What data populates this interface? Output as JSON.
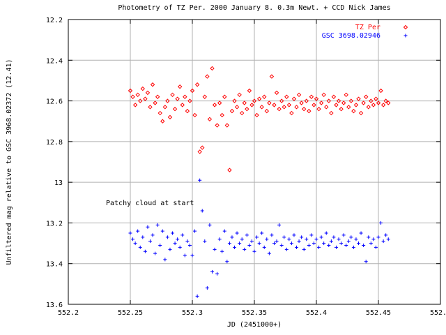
{
  "chart_data": {
    "type": "scatter",
    "title": "Photometry of TZ Per. 2000 January 8. 0.3m Newt. + CCD   Nick James",
    "xlabel": "JD (2451000+)",
    "ylabel": "Unfiltered mag relative to GSC 3968.02372 (12.41)",
    "xlim": [
      552.2,
      552.5
    ],
    "ylim": [
      12.2,
      13.6
    ],
    "y_inverted": true,
    "grid": true,
    "legend_position": "top-right",
    "x_ticks": [
      "552.2",
      "552.25",
      "552.3",
      "552.35",
      "552.4",
      "552.45",
      "552.5"
    ],
    "y_ticks": [
      "12.2",
      "12.4",
      "12.6",
      "12.8",
      "13",
      "13.2",
      "13.4",
      "13.6"
    ],
    "annotation": "Patchy cloud at start",
    "series": [
      {
        "name": "TZ Per",
        "color": "#ff0000",
        "marker": "diamond",
        "points": [
          [
            552.25,
            12.55
          ],
          [
            552.252,
            12.58
          ],
          [
            552.254,
            12.62
          ],
          [
            552.256,
            12.57
          ],
          [
            552.258,
            12.6
          ],
          [
            552.26,
            12.54
          ],
          [
            552.262,
            12.59
          ],
          [
            552.264,
            12.56
          ],
          [
            552.266,
            12.63
          ],
          [
            552.268,
            12.52
          ],
          [
            552.27,
            12.61
          ],
          [
            552.272,
            12.58
          ],
          [
            552.274,
            12.66
          ],
          [
            552.276,
            12.7
          ],
          [
            552.278,
            12.63
          ],
          [
            552.28,
            12.6
          ],
          [
            552.282,
            12.68
          ],
          [
            552.284,
            12.57
          ],
          [
            552.286,
            12.64
          ],
          [
            552.288,
            12.59
          ],
          [
            552.29,
            12.53
          ],
          [
            552.292,
            12.62
          ],
          [
            552.294,
            12.58
          ],
          [
            552.296,
            12.65
          ],
          [
            552.298,
            12.6
          ],
          [
            552.3,
            12.55
          ],
          [
            552.302,
            12.67
          ],
          [
            552.304,
            12.52
          ],
          [
            552.306,
            12.85
          ],
          [
            552.308,
            12.83
          ],
          [
            552.31,
            12.58
          ],
          [
            552.312,
            12.48
          ],
          [
            552.314,
            12.69
          ],
          [
            552.316,
            12.44
          ],
          [
            552.318,
            12.62
          ],
          [
            552.32,
            12.72
          ],
          [
            552.322,
            12.61
          ],
          [
            552.324,
            12.67
          ],
          [
            552.326,
            12.58
          ],
          [
            552.328,
            12.72
          ],
          [
            552.33,
            12.94
          ],
          [
            552.332,
            12.65
          ],
          [
            552.334,
            12.6
          ],
          [
            552.336,
            12.63
          ],
          [
            552.338,
            12.57
          ],
          [
            552.34,
            12.66
          ],
          [
            552.342,
            12.61
          ],
          [
            552.344,
            12.64
          ],
          [
            552.346,
            12.55
          ],
          [
            552.348,
            12.62
          ],
          [
            552.35,
            12.6
          ],
          [
            552.352,
            12.67
          ],
          [
            552.354,
            12.59
          ],
          [
            552.356,
            12.63
          ],
          [
            552.358,
            12.58
          ],
          [
            552.36,
            12.65
          ],
          [
            552.362,
            12.61
          ],
          [
            552.364,
            12.48
          ],
          [
            552.366,
            12.62
          ],
          [
            552.368,
            12.56
          ],
          [
            552.37,
            12.64
          ],
          [
            552.372,
            12.6
          ],
          [
            552.374,
            12.63
          ],
          [
            552.376,
            12.58
          ],
          [
            552.378,
            12.62
          ],
          [
            552.38,
            12.66
          ],
          [
            552.382,
            12.59
          ],
          [
            552.384,
            12.63
          ],
          [
            552.386,
            12.57
          ],
          [
            552.388,
            12.61
          ],
          [
            552.39,
            12.64
          ],
          [
            552.392,
            12.6
          ],
          [
            552.394,
            12.65
          ],
          [
            552.396,
            12.58
          ],
          [
            552.398,
            12.62
          ],
          [
            552.4,
            12.59
          ],
          [
            552.402,
            12.64
          ],
          [
            552.404,
            12.61
          ],
          [
            552.406,
            12.57
          ],
          [
            552.408,
            12.63
          ],
          [
            552.41,
            12.6
          ],
          [
            552.412,
            12.66
          ],
          [
            552.414,
            12.58
          ],
          [
            552.416,
            12.62
          ],
          [
            552.418,
            12.6
          ],
          [
            552.42,
            12.64
          ],
          [
            552.422,
            12.61
          ],
          [
            552.424,
            12.57
          ],
          [
            552.426,
            12.63
          ],
          [
            552.428,
            12.6
          ],
          [
            552.43,
            12.65
          ],
          [
            552.432,
            12.62
          ],
          [
            552.434,
            12.59
          ],
          [
            552.436,
            12.66
          ],
          [
            552.438,
            12.61
          ],
          [
            552.44,
            12.58
          ],
          [
            552.442,
            12.63
          ],
          [
            552.444,
            12.6
          ],
          [
            552.446,
            12.62
          ],
          [
            552.448,
            12.59
          ],
          [
            552.45,
            12.61
          ],
          [
            552.452,
            12.55
          ],
          [
            552.454,
            12.62
          ],
          [
            552.456,
            12.6
          ],
          [
            552.458,
            12.61
          ]
        ]
      },
      {
        "name": "GSC 3698.02946",
        "color": "#0000ff",
        "marker": "plus",
        "points": [
          [
            552.25,
            13.25
          ],
          [
            552.252,
            13.28
          ],
          [
            552.254,
            13.3
          ],
          [
            552.256,
            13.24
          ],
          [
            552.258,
            13.32
          ],
          [
            552.26,
            13.27
          ],
          [
            552.262,
            13.34
          ],
          [
            552.264,
            13.22
          ],
          [
            552.266,
            13.29
          ],
          [
            552.268,
            13.26
          ],
          [
            552.27,
            13.35
          ],
          [
            552.272,
            13.21
          ],
          [
            552.274,
            13.31
          ],
          [
            552.276,
            13.24
          ],
          [
            552.278,
            13.38
          ],
          [
            552.28,
            13.27
          ],
          [
            552.282,
            13.33
          ],
          [
            552.284,
            13.25
          ],
          [
            552.286,
            13.3
          ],
          [
            552.288,
            13.28
          ],
          [
            552.29,
            13.32
          ],
          [
            552.292,
            13.26
          ],
          [
            552.294,
            13.36
          ],
          [
            552.296,
            13.29
          ],
          [
            552.298,
            13.31
          ],
          [
            552.3,
            13.36
          ],
          [
            552.302,
            13.24
          ],
          [
            552.304,
            13.56
          ],
          [
            552.306,
            12.99
          ],
          [
            552.308,
            13.14
          ],
          [
            552.31,
            13.29
          ],
          [
            552.312,
            13.52
          ],
          [
            552.314,
            13.21
          ],
          [
            552.316,
            13.44
          ],
          [
            552.318,
            13.33
          ],
          [
            552.32,
            13.45
          ],
          [
            552.322,
            13.28
          ],
          [
            552.324,
            13.34
          ],
          [
            552.326,
            13.24
          ],
          [
            552.328,
            13.39
          ],
          [
            552.33,
            13.3
          ],
          [
            552.332,
            13.27
          ],
          [
            552.334,
            13.32
          ],
          [
            552.336,
            13.25
          ],
          [
            552.338,
            13.3
          ],
          [
            552.34,
            13.28
          ],
          [
            552.342,
            13.33
          ],
          [
            552.344,
            13.26
          ],
          [
            552.346,
            13.31
          ],
          [
            552.348,
            13.29
          ],
          [
            552.35,
            13.34
          ],
          [
            552.352,
            13.27
          ],
          [
            552.354,
            13.3
          ],
          [
            552.356,
            13.25
          ],
          [
            552.358,
            13.32
          ],
          [
            552.36,
            13.28
          ],
          [
            552.362,
            13.35
          ],
          [
            552.364,
            13.26
          ],
          [
            552.366,
            13.3
          ],
          [
            552.368,
            13.29
          ],
          [
            552.37,
            13.21
          ],
          [
            552.372,
            13.31
          ],
          [
            552.374,
            13.27
          ],
          [
            552.376,
            13.33
          ],
          [
            552.378,
            13.28
          ],
          [
            552.38,
            13.3
          ],
          [
            552.382,
            13.26
          ],
          [
            552.384,
            13.32
          ],
          [
            552.386,
            13.29
          ],
          [
            552.388,
            13.27
          ],
          [
            552.39,
            13.33
          ],
          [
            552.392,
            13.28
          ],
          [
            552.394,
            13.31
          ],
          [
            552.396,
            13.26
          ],
          [
            552.398,
            13.3
          ],
          [
            552.4,
            13.28
          ],
          [
            552.402,
            13.32
          ],
          [
            552.404,
            13.27
          ],
          [
            552.406,
            13.3
          ],
          [
            552.408,
            13.25
          ],
          [
            552.41,
            13.31
          ],
          [
            552.412,
            13.29
          ],
          [
            552.414,
            13.27
          ],
          [
            552.416,
            13.32
          ],
          [
            552.418,
            13.28
          ],
          [
            552.42,
            13.3
          ],
          [
            552.422,
            13.26
          ],
          [
            552.424,
            13.31
          ],
          [
            552.426,
            13.29
          ],
          [
            552.428,
            13.27
          ],
          [
            552.43,
            13.32
          ],
          [
            552.432,
            13.28
          ],
          [
            552.434,
            13.3
          ],
          [
            552.436,
            13.25
          ],
          [
            552.438,
            13.31
          ],
          [
            552.44,
            13.39
          ],
          [
            552.442,
            13.27
          ],
          [
            552.444,
            13.3
          ],
          [
            552.446,
            13.28
          ],
          [
            552.448,
            13.32
          ],
          [
            552.45,
            13.27
          ],
          [
            552.452,
            13.2
          ],
          [
            552.454,
            13.29
          ],
          [
            552.456,
            13.26
          ],
          [
            552.458,
            13.28
          ]
        ]
      }
    ]
  }
}
